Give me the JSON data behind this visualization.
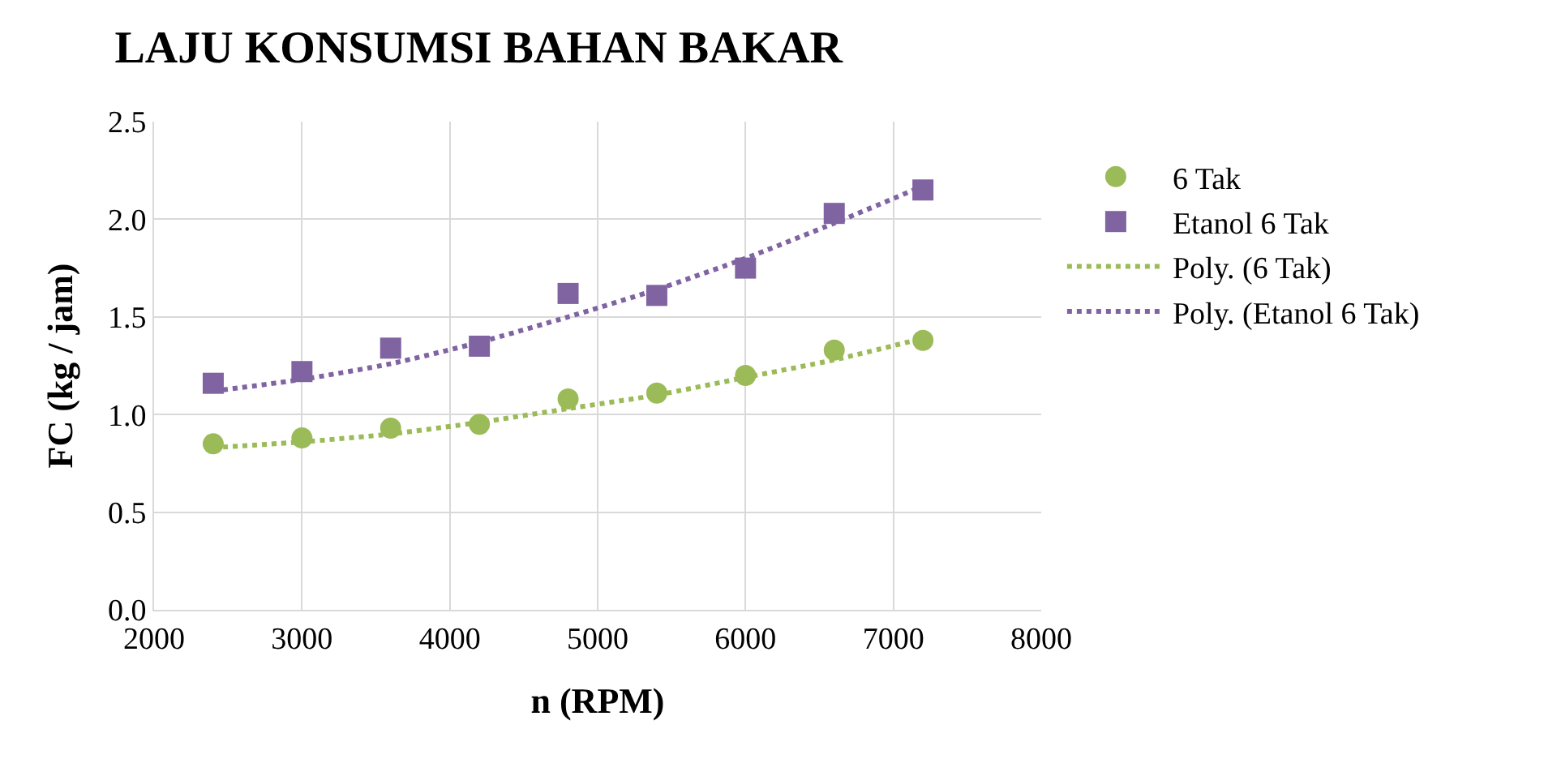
{
  "chart_data": {
    "type": "scatter",
    "title": "LAJU KONSUMSI BAHAN BAKAR",
    "xlabel": "n (RPM)",
    "ylabel": "FC (kg / jam)",
    "x": [
      2400,
      3000,
      3600,
      4200,
      4800,
      5400,
      6000,
      6600,
      7200
    ],
    "series": [
      {
        "name": "6 Tak",
        "color": "#9bbb59",
        "marker": "circle",
        "values": [
          0.85,
          0.88,
          0.93,
          0.95,
          1.08,
          1.11,
          1.2,
          1.33,
          1.38
        ]
      },
      {
        "name": "Etanol 6 Tak",
        "color": "#8064a2",
        "marker": "square",
        "values": [
          1.16,
          1.22,
          1.34,
          1.35,
          1.62,
          1.61,
          1.75,
          2.03,
          2.15
        ]
      },
      {
        "name": "Poly. (6 Tak)",
        "type": "line",
        "line_style": "dotted",
        "color": "#9bbb59",
        "values": [
          0.83,
          0.86,
          0.9,
          0.96,
          1.03,
          1.1,
          1.19,
          1.28,
          1.39
        ]
      },
      {
        "name": "Poly. (Etanol 6 Tak)",
        "type": "line",
        "line_style": "dotted",
        "color": "#8064a2",
        "values": [
          1.12,
          1.18,
          1.26,
          1.37,
          1.5,
          1.64,
          1.8,
          1.98,
          2.17
        ]
      }
    ],
    "xlim": [
      2000,
      8000
    ],
    "xticks": [
      2000,
      3000,
      4000,
      5000,
      6000,
      7000,
      8000
    ],
    "ylim": [
      0,
      2.5
    ],
    "yticks": [
      {
        "value": 0,
        "label": "0.0"
      },
      {
        "value": 0.5,
        "label": "0.5"
      },
      {
        "value": 1,
        "label": "1.0"
      },
      {
        "value": 1.5,
        "label": "1.5"
      },
      {
        "value": 2,
        "label": "2.0"
      },
      {
        "value": 2.5,
        "label": "2.5"
      }
    ],
    "grid": true,
    "legend": "right"
  }
}
